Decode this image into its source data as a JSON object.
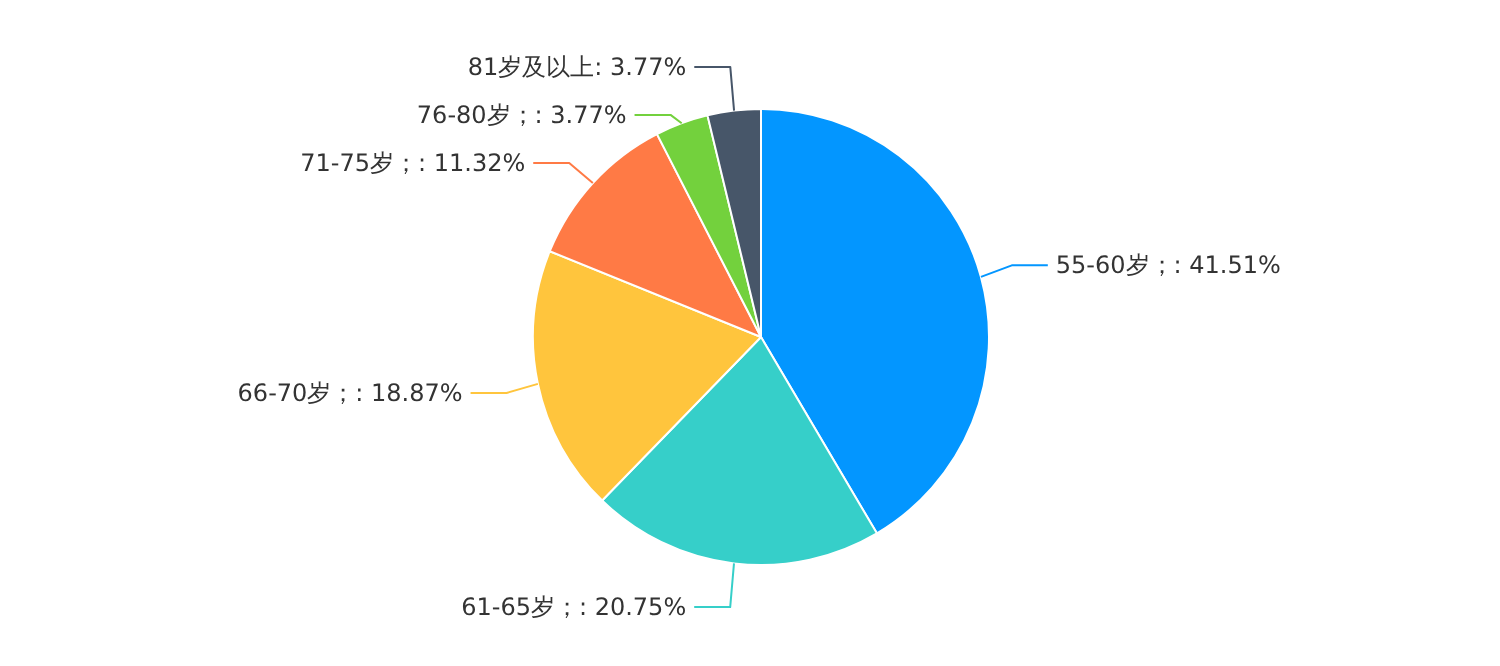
{
  "chart_data": {
    "type": "pie",
    "categories": [
      "55-60岁",
      "61-65岁",
      "66-70岁",
      "71-75岁",
      "76-80岁",
      "81岁及以上"
    ],
    "values": [
      41.51,
      20.75,
      18.87,
      11.32,
      3.77,
      3.77
    ],
    "value_labels": [
      "；: 41.51%",
      "；: 20.75%",
      "；: 18.87%",
      "；: 11.32%",
      "；: 3.77%",
      ": 3.77%"
    ],
    "colors": [
      "#0396ff",
      "#36cfc9",
      "#ffc53d",
      "#ff7a45",
      "#73d13d",
      "#475669"
    ]
  }
}
